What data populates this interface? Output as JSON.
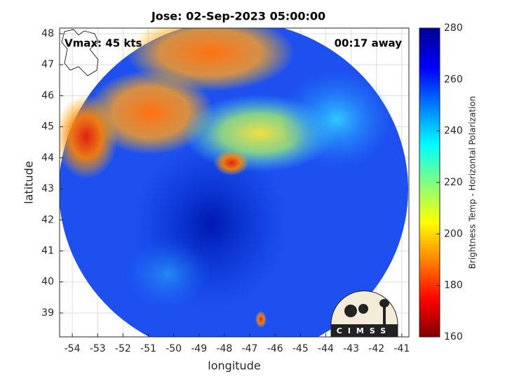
{
  "chart_data": {
    "type": "map",
    "title": "Jose: 02-Sep-2023 05:00:00",
    "annotation_left": "Vmax: 45 kts",
    "annotation_right": "00:17 away",
    "xlabel": "longitude",
    "ylabel": "latitude",
    "xlim": [
      -54.5,
      -40.72
    ],
    "ylim": [
      38.23,
      48.18
    ],
    "xticks": [
      -54,
      -53,
      -52,
      -51,
      -50,
      -49,
      -48,
      -47,
      -46,
      -45,
      -44,
      -43,
      -42,
      -41
    ],
    "yticks": [
      39,
      40,
      41,
      42,
      43,
      44,
      45,
      46,
      47,
      48
    ],
    "grid": true,
    "colorbar": {
      "label": "Brightness Temp - Horizontal Polarization",
      "lim": [
        160,
        280
      ],
      "ticks": [
        160,
        180,
        200,
        220,
        240,
        260,
        280
      ]
    },
    "logo": "CIMSS"
  }
}
